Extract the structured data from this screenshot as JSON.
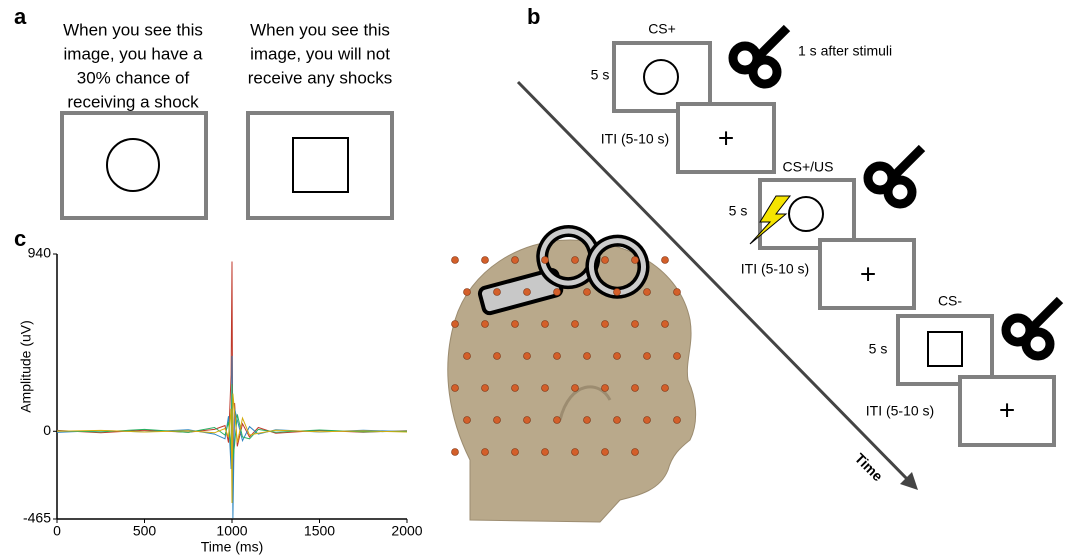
{
  "panel_a": {
    "label": "a",
    "cs_plus_text": [
      "When you see this",
      "image, you have a",
      "30% chance of",
      "receiving a shock"
    ],
    "cs_minus_text": [
      "When you see this",
      "image, you will not",
      "receive any shocks"
    ]
  },
  "panel_b": {
    "label": "b",
    "trials": [
      {
        "name": "CS+",
        "duration": "5 s",
        "iti": "ITI (5-10 s)",
        "note": "1 s after stimuli"
      },
      {
        "name": "CS+/US",
        "duration": "5 s",
        "iti": "ITI (5-10 s)"
      },
      {
        "name": "CS-",
        "duration": "5 s",
        "iti": "ITI (5-10 s)"
      }
    ],
    "fixation": "+",
    "axis_label": "Time"
  },
  "chart_data": {
    "type": "line",
    "label": "c",
    "xlabel": "Time (ms)",
    "ylabel": "Amplitude (uV)",
    "xlim": [
      0,
      2000
    ],
    "ylim": [
      -465,
      940
    ],
    "xticks": [
      0,
      500,
      1000,
      1500,
      2000
    ],
    "yticks": [
      -465,
      0,
      940
    ],
    "x": [
      0,
      250,
      500,
      750,
      900,
      960,
      980,
      995,
      1000,
      1005,
      1015,
      1030,
      1060,
      1100,
      1150,
      1250,
      1500,
      1750,
      2000
    ],
    "series": [
      {
        "color": "#c0392b",
        "values": [
          5,
          -8,
          6,
          -5,
          10,
          30,
          -60,
          300,
          900,
          -300,
          150,
          -80,
          40,
          -30,
          20,
          -10,
          5,
          -5,
          3
        ]
      },
      {
        "color": "#2e86c1",
        "values": [
          -6,
          4,
          -3,
          8,
          -15,
          -40,
          80,
          -200,
          400,
          -460,
          120,
          60,
          -50,
          25,
          -15,
          8,
          -4,
          6,
          -2
        ]
      },
      {
        "color": "#27ae60",
        "values": [
          2,
          -3,
          10,
          -6,
          20,
          -20,
          50,
          -100,
          250,
          -150,
          -70,
          90,
          -30,
          -40,
          10,
          -5,
          7,
          -3,
          1
        ]
      },
      {
        "color": "#d4ac0d",
        "values": [
          0,
          5,
          -4,
          3,
          -8,
          15,
          -30,
          120,
          -380,
          200,
          100,
          -60,
          70,
          -20,
          -10,
          6,
          -2,
          2,
          -4
        ]
      }
    ]
  }
}
